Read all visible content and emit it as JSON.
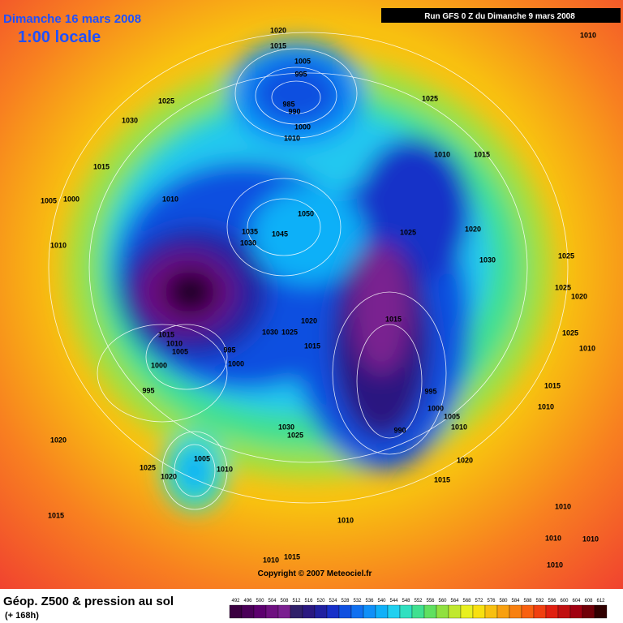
{
  "header": {
    "title": "Dimanche 16 mars 2008",
    "time": "1:00 locale",
    "run": "Run GFS 0 Z du Dimanche 9 mars 2008"
  },
  "copyright": "Copyright © 2007 Meteociel.fr",
  "legend": {
    "title": "Géop. Z500 & pression au sol",
    "lead": "(+ 168h)",
    "scale": [
      492,
      496,
      500,
      504,
      508,
      512,
      516,
      520,
      524,
      528,
      532,
      536,
      540,
      544,
      548,
      552,
      556,
      560,
      564,
      568,
      572,
      576,
      580,
      584,
      588,
      592,
      596,
      600,
      604,
      608,
      612
    ],
    "colors": [
      "#3a0040",
      "#4a0058",
      "#5c006e",
      "#6e1080",
      "#7a2090",
      "#30206a",
      "#2a1880",
      "#2020a0",
      "#1830c8",
      "#1050e0",
      "#1070f0",
      "#1090f8",
      "#10b0f8",
      "#20d0f0",
      "#30e0c0",
      "#40e090",
      "#60e060",
      "#90e040",
      "#c0e830",
      "#e8f020",
      "#f8e010",
      "#f8c010",
      "#f8a010",
      "#f88010",
      "#f86010",
      "#f04010",
      "#e02010",
      "#c01010",
      "#a00010",
      "#700008",
      "#300000"
    ]
  },
  "isobar_labels": [
    1020,
    1015,
    1005,
    995,
    985,
    990,
    1000,
    1010,
    1025,
    1030,
    1025,
    1010,
    1010,
    1015,
    1015,
    1005,
    1000,
    1010,
    1050,
    1035,
    1045,
    1030,
    1025,
    1020,
    1010,
    1030,
    1025,
    1025,
    1020,
    1015,
    1010,
    1005,
    1030,
    1025,
    1020,
    1015,
    1015,
    1025,
    1010,
    995,
    1000,
    1000,
    995,
    1015,
    995,
    1000,
    1010,
    1005,
    1010,
    990,
    1030,
    1025,
    1020,
    1005,
    1010,
    1020,
    1025,
    1020,
    1015,
    1015,
    1010,
    1010,
    1010,
    1010,
    1015,
    1010,
    1010
  ]
}
